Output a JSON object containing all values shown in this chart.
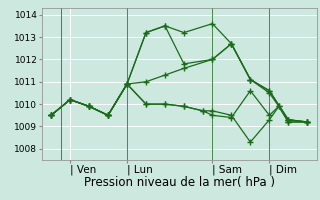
{
  "background_color": "#cce8df",
  "grid_color": "#ffffff",
  "line_color": "#1a6b1a",
  "xlabel": "Pression niveau de la mer( hPa )",
  "ylim": [
    1007.5,
    1014.3
  ],
  "yticks": [
    1008,
    1009,
    1010,
    1011,
    1012,
    1013,
    1014
  ],
  "day_labels": [
    "| Ven",
    "| Lun",
    "| Sam",
    "| Dim"
  ],
  "day_positions": [
    1.0,
    4.0,
    8.5,
    11.5
  ],
  "vlines_x": [
    0.5,
    4.0,
    8.5,
    11.5
  ],
  "series": [
    {
      "x": [
        0.0,
        1.0,
        2.0,
        3.0,
        4.0,
        5.0,
        6.0,
        7.0,
        8.5,
        9.5,
        10.5,
        11.5,
        12.5,
        13.5
      ],
      "y": [
        1009.5,
        1010.2,
        1009.9,
        1009.5,
        1010.9,
        1013.2,
        1013.5,
        1013.2,
        1013.6,
        1012.7,
        1011.1,
        1010.6,
        1009.3,
        1009.2
      ]
    },
    {
      "x": [
        0.0,
        1.0,
        2.0,
        3.0,
        4.0,
        5.0,
        6.0,
        7.0,
        8.5,
        9.5,
        10.5,
        11.5,
        12.5,
        13.5
      ],
      "y": [
        1009.5,
        1010.2,
        1009.9,
        1009.5,
        1010.9,
        1013.2,
        1013.5,
        1011.8,
        1012.0,
        1012.7,
        1011.1,
        1010.6,
        1009.3,
        1009.2
      ]
    },
    {
      "x": [
        0.0,
        1.0,
        2.0,
        3.0,
        4.0,
        5.0,
        6.0,
        7.0,
        8.5,
        9.5,
        10.5,
        11.5,
        12.5,
        13.5
      ],
      "y": [
        1009.5,
        1010.2,
        1009.9,
        1009.5,
        1010.9,
        1011.0,
        1011.3,
        1011.6,
        1012.0,
        1012.7,
        1011.1,
        1010.5,
        1009.3,
        1009.2
      ]
    },
    {
      "x": [
        0.0,
        1.0,
        2.0,
        3.0,
        4.0,
        5.0,
        6.0,
        7.0,
        8.0,
        8.5,
        9.5,
        10.5,
        11.5,
        12.0,
        12.5,
        13.5
      ],
      "y": [
        1009.5,
        1010.2,
        1009.9,
        1009.5,
        1010.9,
        1010.0,
        1010.0,
        1009.9,
        1009.7,
        1009.7,
        1009.5,
        1008.3,
        1009.3,
        1009.9,
        1009.2,
        1009.2
      ]
    },
    {
      "x": [
        0.0,
        1.0,
        2.0,
        3.0,
        4.0,
        5.0,
        6.0,
        7.0,
        8.0,
        8.5,
        9.5,
        10.5,
        11.5,
        12.0,
        12.5,
        13.5
      ],
      "y": [
        1009.5,
        1010.2,
        1009.9,
        1009.5,
        1010.9,
        1010.0,
        1010.0,
        1009.9,
        1009.7,
        1009.5,
        1009.4,
        1010.6,
        1009.5,
        1009.9,
        1009.2,
        1009.2
      ]
    }
  ],
  "marker": "+",
  "marker_size": 4,
  "linewidth": 0.9,
  "xlabel_fontsize": 8.5,
  "ytick_fontsize": 6.5,
  "xtick_fontsize": 7.5
}
